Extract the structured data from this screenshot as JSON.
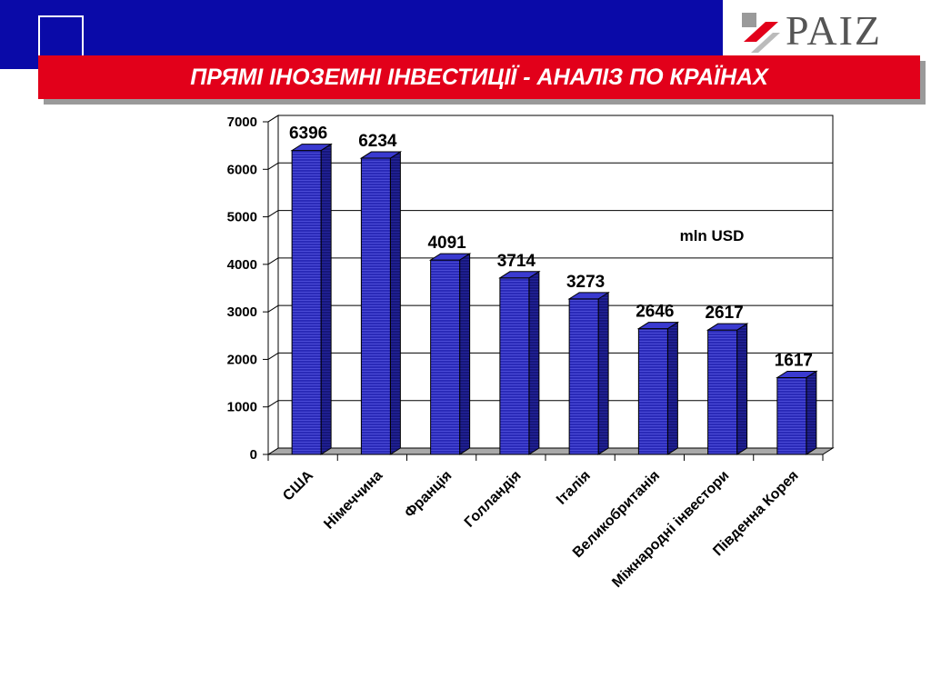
{
  "header": {
    "title": "ПРЯМІ ІНОЗЕМНІ ІНВЕСТИЦІЇ - АНАЛІЗ ПО КРАЇНАХ",
    "logo_text": "PAIZ",
    "band_color": "#0a0aa8",
    "title_bar_color": "#e2001a"
  },
  "chart_data": {
    "type": "bar",
    "categories": [
      "США",
      "Німеччина",
      "Франція",
      "Голландія",
      "Італія",
      "Великобританія",
      "Міжнародні інвестори",
      "Південна Корея"
    ],
    "values": [
      6396,
      6234,
      4091,
      3714,
      3273,
      2646,
      2617,
      1617
    ],
    "value_labels": [
      "6396",
      "6234",
      "4091",
      "3714",
      "3273",
      "2646",
      "2617",
      "1617"
    ],
    "y_ticks": [
      "0",
      "1000",
      "2000",
      "3000",
      "4000",
      "5000",
      "6000",
      "7000"
    ],
    "ylim": [
      0,
      7000
    ],
    "unit_annotation": "mln USD",
    "bar_color": "#2a2ab8",
    "grid": true,
    "three_d": true
  }
}
